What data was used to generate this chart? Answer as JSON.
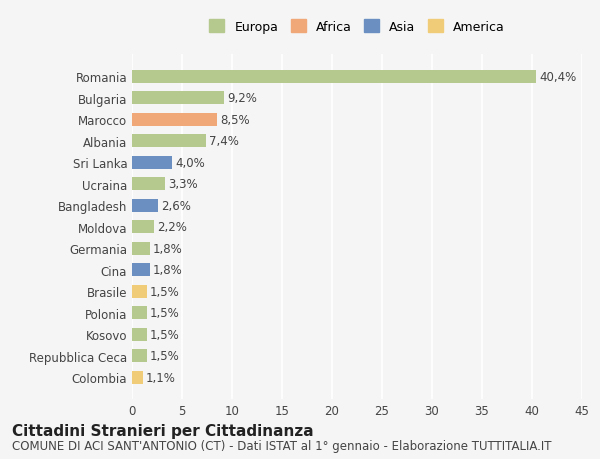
{
  "categories": [
    "Romania",
    "Bulgaria",
    "Marocco",
    "Albania",
    "Sri Lanka",
    "Ucraina",
    "Bangladesh",
    "Moldova",
    "Germania",
    "Cina",
    "Brasile",
    "Polonia",
    "Kosovo",
    "Repubblica Ceca",
    "Colombia"
  ],
  "values": [
    40.4,
    9.2,
    8.5,
    7.4,
    4.0,
    3.3,
    2.6,
    2.2,
    1.8,
    1.8,
    1.5,
    1.5,
    1.5,
    1.5,
    1.1
  ],
  "labels": [
    "40,4%",
    "9,2%",
    "8,5%",
    "7,4%",
    "4,0%",
    "3,3%",
    "2,6%",
    "2,2%",
    "1,8%",
    "1,8%",
    "1,5%",
    "1,5%",
    "1,5%",
    "1,5%",
    "1,1%"
  ],
  "continents": [
    "Europa",
    "Europa",
    "Africa",
    "Europa",
    "Asia",
    "Europa",
    "Asia",
    "Europa",
    "Europa",
    "Asia",
    "America",
    "Europa",
    "Europa",
    "Europa",
    "America"
  ],
  "colors": {
    "Europa": "#b5c98e",
    "Africa": "#f0a878",
    "Asia": "#6a8fc0",
    "America": "#f0cc78"
  },
  "legend_order": [
    "Europa",
    "Africa",
    "Asia",
    "America"
  ],
  "xlim": [
    0,
    45
  ],
  "xticks": [
    0,
    5,
    10,
    15,
    20,
    25,
    30,
    35,
    40,
    45
  ],
  "title": "Cittadini Stranieri per Cittadinanza",
  "subtitle": "COMUNE DI ACI SANT'ANTONIO (CT) - Dati ISTAT al 1° gennaio - Elaborazione TUTTITALIA.IT",
  "background_color": "#f5f5f5",
  "grid_color": "#ffffff",
  "bar_height": 0.6,
  "title_fontsize": 11,
  "subtitle_fontsize": 8.5,
  "label_fontsize": 8.5,
  "tick_fontsize": 8.5,
  "legend_fontsize": 9
}
